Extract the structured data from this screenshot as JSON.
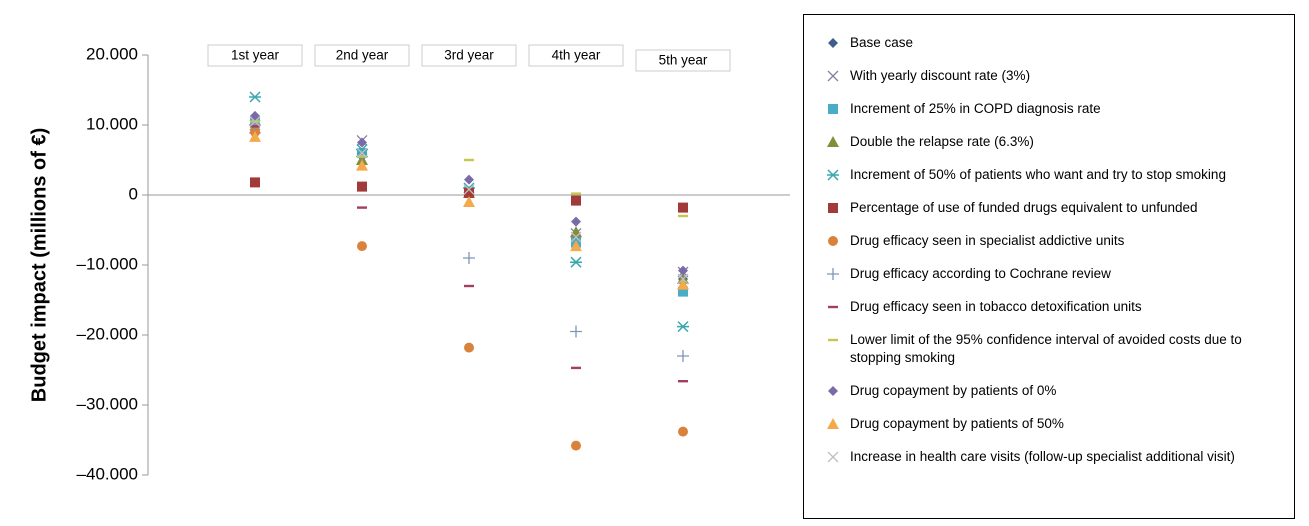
{
  "chart_data": {
    "type": "scatter",
    "y_label": "Budget impact (millions of €)",
    "categories": [
      "1st year",
      "2nd year",
      "3rd year",
      "4th year",
      "5th year"
    ],
    "ylim": [
      -40000,
      20000
    ],
    "yticks": [
      {
        "value": 20000,
        "label": "20.000"
      },
      {
        "value": 10000,
        "label": "10.000"
      },
      0,
      {
        "value": -10000,
        "label": "–10.000"
      },
      {
        "value": -20000,
        "label": "–20.000"
      },
      {
        "value": -30000,
        "label": "–30.000"
      },
      {
        "value": -40000,
        "label": "–40.000"
      }
    ],
    "series": [
      {
        "name": "Base case",
        "color": "#3e5f8a",
        "marker": "diamond",
        "values": [
          10500,
          5500,
          500,
          -6000,
          -12000
        ]
      },
      {
        "name": "With yearly discount rate (3%)",
        "color": "#8a7fa0",
        "marker": "x",
        "values": [
          10000,
          7800,
          800,
          -5500,
          -11000
        ]
      },
      {
        "name": "Increment of 25% in COPD diagnosis rate",
        "color": "#4bacc6",
        "marker": "square",
        "values": [
          10500,
          6000,
          500,
          -6800,
          -13800
        ]
      },
      {
        "name": "Double the relapse rate (6.3%)",
        "color": "#7f8f3a",
        "marker": "triangle",
        "values": [
          9500,
          5000,
          300,
          -5300,
          -12000
        ]
      },
      {
        "name": "Increment of 50% of patients who want and try to stop smoking",
        "color": "#3aa6b0",
        "marker": "asterisk",
        "values": [
          14000,
          6500,
          1000,
          -9600,
          -18800
        ]
      },
      {
        "name": "Percentage of use of funded drugs equivalent to unfunded",
        "color": "#a33a3a",
        "marker": "square",
        "values": [
          1800,
          1200,
          300,
          -800,
          -1800
        ]
      },
      {
        "name": "Drug efficacy seen in specialist addictive units",
        "color": "#d9823b",
        "marker": "circle",
        "values": [
          9000,
          -7300,
          -21800,
          -35800,
          -33800
        ]
      },
      {
        "name": "Drug efficacy according to Cochrane review",
        "color": "#7f96b5",
        "marker": "plus",
        "values": [
          10000,
          5500,
          -9000,
          -19500,
          -23000
        ]
      },
      {
        "name": "Drug efficacy seen in tobacco detoxification units",
        "color": "#a0405a",
        "marker": "dash",
        "values": [
          9800,
          -1800,
          -13000,
          -24700,
          -26600
        ]
      },
      {
        "name": "Lower limit of the 95% confidence interval of avoided costs due to stopping smoking",
        "color": "#c6c650",
        "marker": "dash",
        "values": [
          10500,
          5500,
          5000,
          200,
          -3000
        ]
      },
      {
        "name": "Drug copayment by patients of 0%",
        "color": "#7b6aa8",
        "marker": "diamond",
        "values": [
          11300,
          7500,
          2200,
          -3800,
          -10800
        ]
      },
      {
        "name": "Drug copayment by patients of 50%",
        "color": "#f5a94a",
        "marker": "triangle",
        "values": [
          8300,
          4200,
          -1000,
          -7300,
          -12800
        ]
      },
      {
        "name": "Increase in health care visits (follow-up specialist additional visit)",
        "color": "#bfbfbf",
        "marker": "x",
        "values": [
          10500,
          6000,
          800,
          -6000,
          -12000
        ]
      }
    ]
  }
}
